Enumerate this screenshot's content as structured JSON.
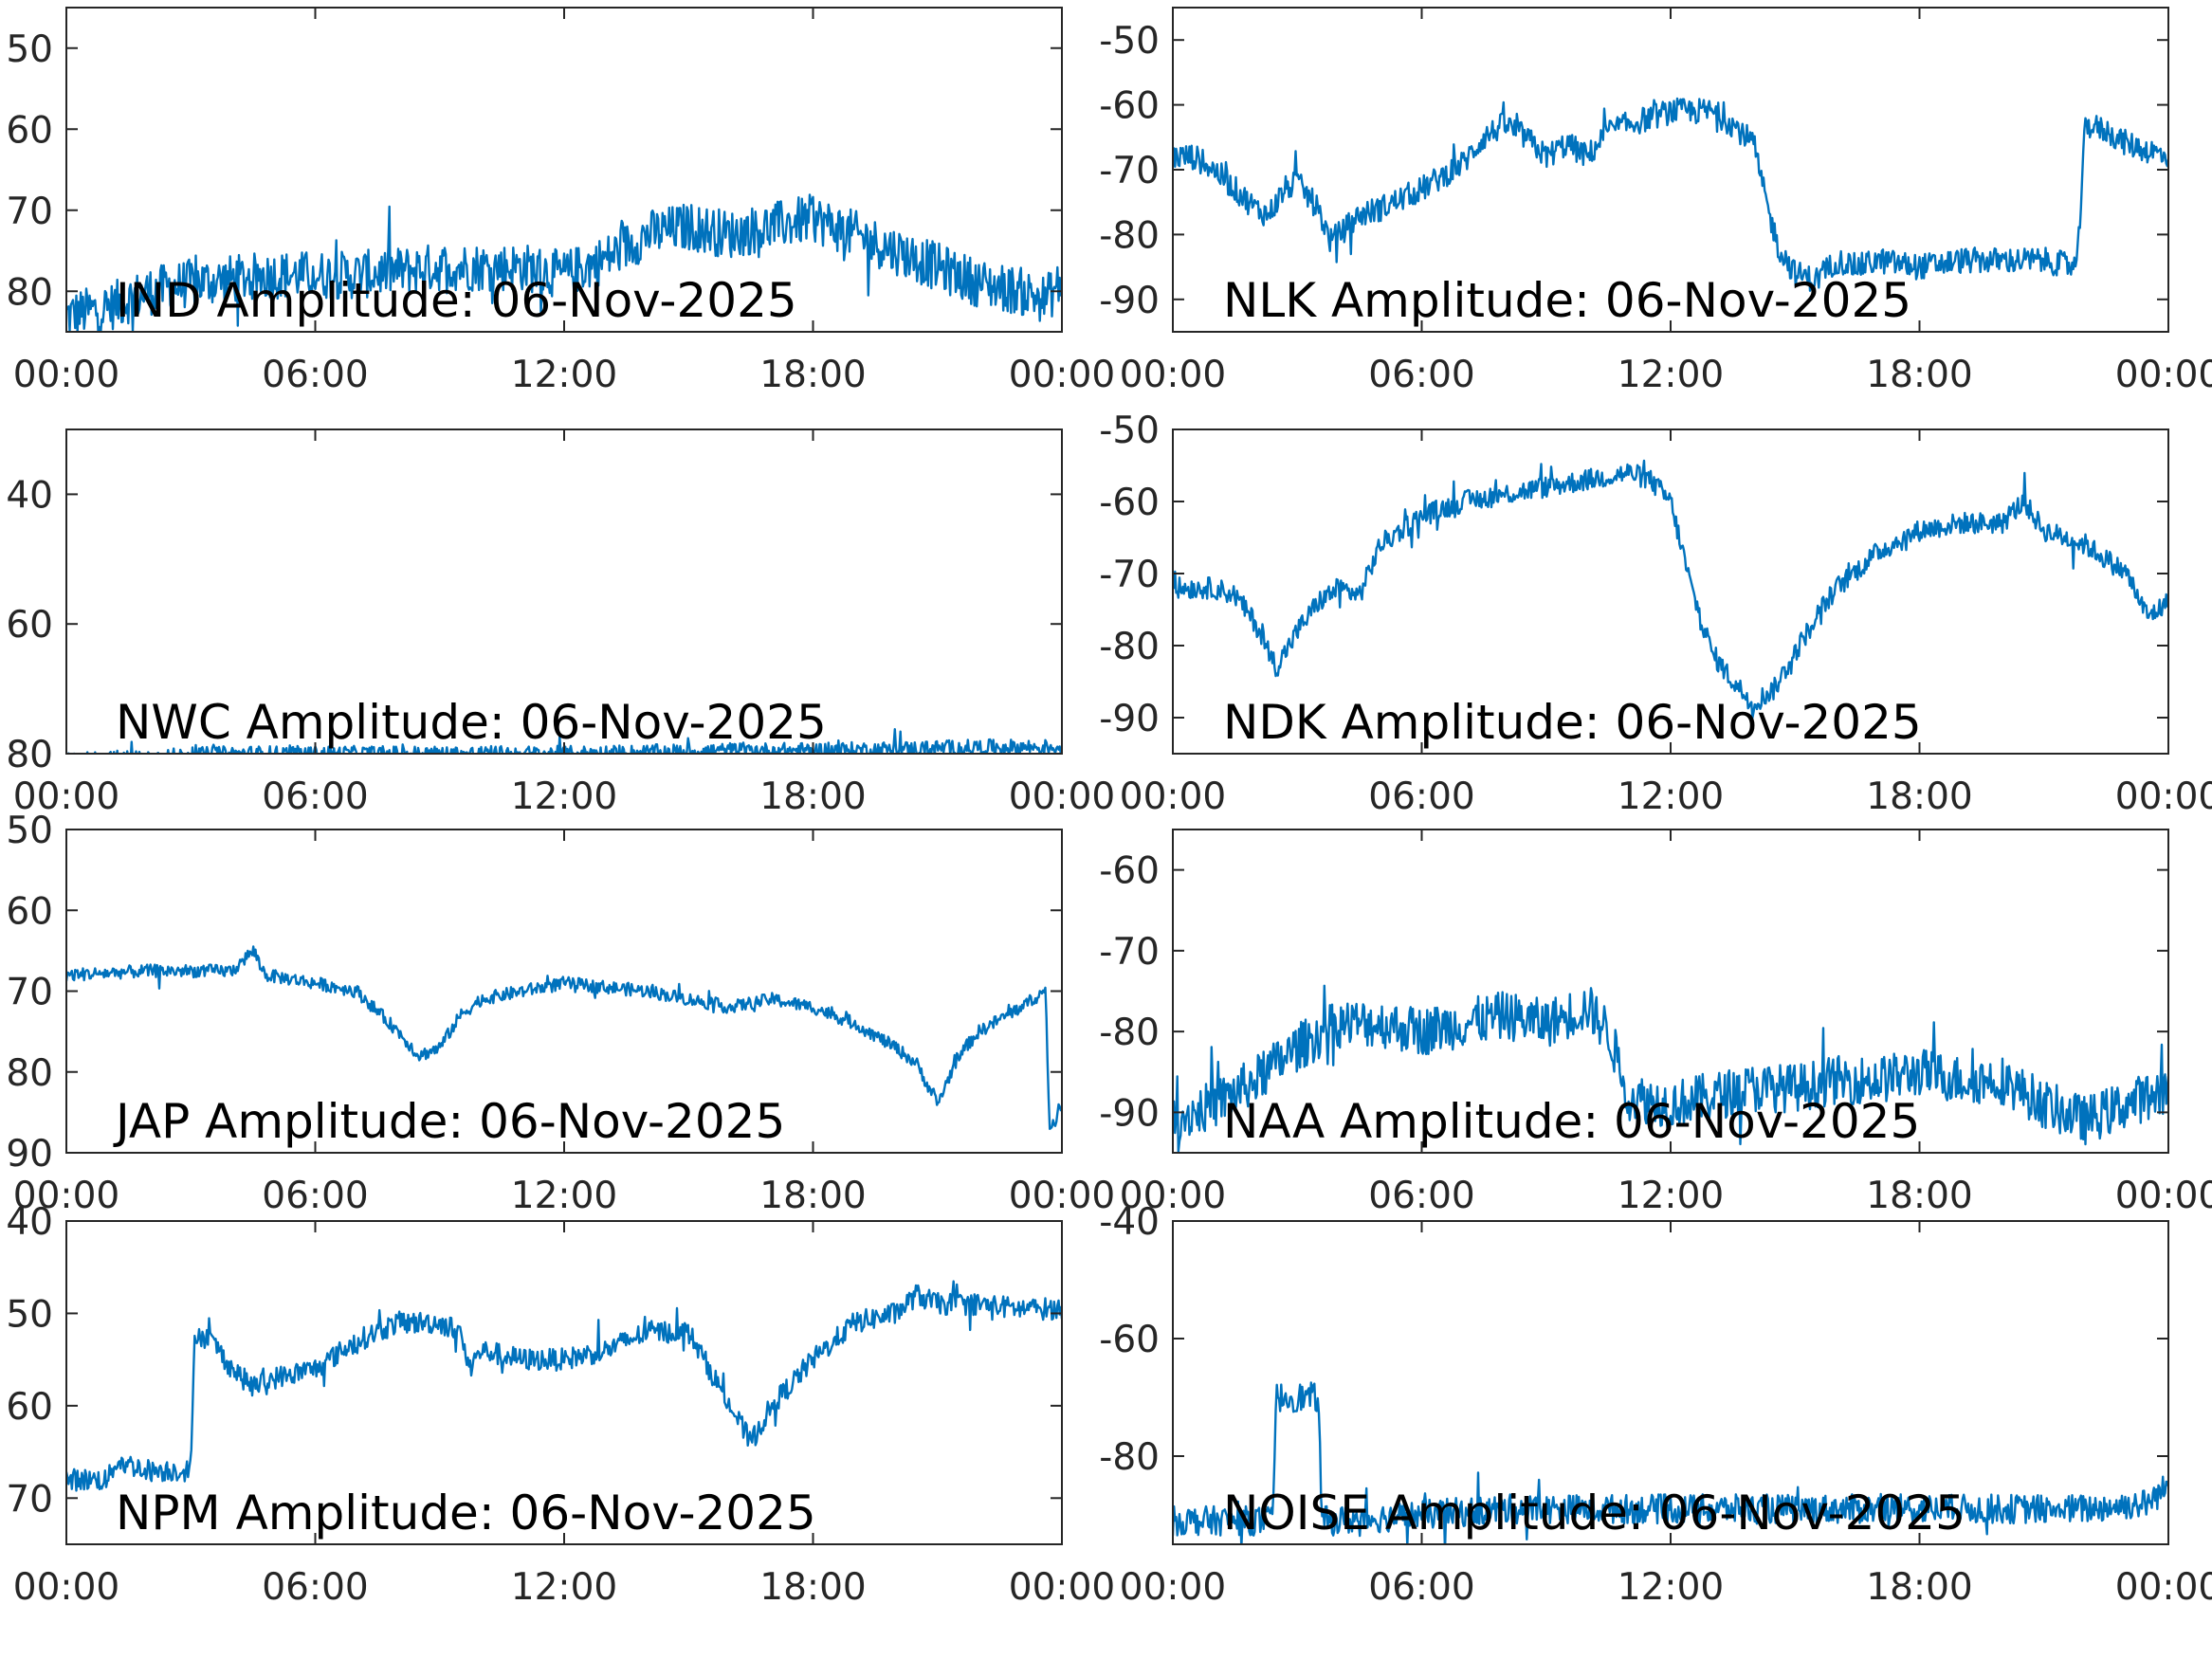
{
  "colors": {
    "series": "#0072bd",
    "axes": "#262626",
    "text": "#000000",
    "background": "#ffffff"
  },
  "chart_data": [
    {
      "type": "line",
      "title": "IND Amplitude: 06-Nov-2025",
      "xlabel": "",
      "ylabel": "",
      "xlim": [
        0,
        24
      ],
      "ylim": [
        -85,
        -45
      ],
      "x_ticks": [
        0,
        6,
        12,
        18,
        24
      ],
      "x_tick_labels": [
        "00:00",
        "06:00",
        "12:00",
        "18:00",
        "00:00"
      ],
      "y_ticks": [
        -50,
        -60,
        -70,
        -80
      ],
      "y_tick_labels": [
        "50",
        "60",
        "70",
        "80"
      ],
      "grid": false,
      "series": [
        {
          "noise": 3,
          "x": [
            0,
            1,
            2,
            3,
            4,
            5,
            6,
            7,
            8,
            9,
            10,
            11,
            12,
            13,
            14,
            15,
            16,
            17,
            18,
            19,
            20,
            21,
            22,
            23,
            23.6,
            24
          ],
          "y": [
            -83,
            -82,
            -80,
            -79,
            -78.5,
            -78,
            -78,
            -78,
            -77.5,
            -77,
            -77,
            -77,
            -78,
            -76,
            -73,
            -72,
            -73,
            -72,
            -71,
            -73,
            -75,
            -77,
            -79,
            -80,
            -81,
            -79
          ]
        }
      ]
    },
    {
      "type": "line",
      "title": "NLK Amplitude: 06-Nov-2025",
      "xlabel": "",
      "ylabel": "",
      "xlim": [
        0,
        24
      ],
      "ylim": [
        -95,
        -45
      ],
      "x_ticks": [
        0,
        6,
        12,
        18,
        24
      ],
      "x_tick_labels": [
        "00:00",
        "06:00",
        "12:00",
        "18:00",
        "00:00"
      ],
      "y_ticks": [
        -50,
        -60,
        -70,
        -80,
        -90
      ],
      "y_tick_labels": [
        "-50",
        "-60",
        "-70",
        "-80",
        "-90"
      ],
      "grid": false,
      "series": [
        {
          "noise": 2,
          "x": [
            0,
            0.5,
            1,
            1.5,
            2,
            2.3,
            2.7,
            3,
            3.5,
            3.8,
            4,
            4.5,
            5,
            6,
            7,
            7.5,
            8,
            8.5,
            9,
            9.5,
            10,
            10.5,
            11,
            12,
            13,
            13.5,
            14,
            14.3,
            14.6,
            15,
            15.5,
            16,
            16.5,
            17,
            18,
            19,
            20,
            21,
            21.8,
            22,
            22.5,
            23,
            23.5,
            24
          ],
          "y": [
            -68,
            -68,
            -70,
            -73,
            -76,
            -77,
            -73,
            -72,
            -76,
            -81,
            -80,
            -77,
            -76,
            -73,
            -69,
            -65,
            -63,
            -65,
            -68,
            -66,
            -68,
            -64,
            -63,
            -61,
            -61,
            -63,
            -66,
            -75,
            -82,
            -86,
            -87,
            -84,
            -85,
            -84,
            -85,
            -84,
            -84,
            -84,
            -85,
            -63,
            -64,
            -66,
            -67,
            -68
          ]
        }
      ]
    },
    {
      "type": "line",
      "title": "NWC Amplitude: 06-Nov-2025",
      "xlabel": "",
      "ylabel": "",
      "xlim": [
        0,
        24
      ],
      "ylim": [
        -80,
        -30
      ],
      "x_ticks": [
        0,
        6,
        12,
        18,
        24
      ],
      "x_tick_labels": [
        "00:00",
        "06:00",
        "12:00",
        "18:00",
        "00:00"
      ],
      "y_ticks": [
        -40,
        -60,
        -80
      ],
      "y_tick_labels": [
        "40",
        "60",
        "80"
      ],
      "grid": false,
      "series": [
        {
          "noise": 1.2,
          "x": [
            0,
            2,
            4,
            6,
            8,
            10,
            12,
            14,
            16,
            18,
            20,
            22,
            24
          ],
          "y": [
            -81,
            -80.5,
            -80,
            -80,
            -80,
            -80,
            -80,
            -79.8,
            -79.5,
            -79.5,
            -79.3,
            -79,
            -79
          ]
        }
      ]
    },
    {
      "type": "line",
      "title": "NDK Amplitude: 06-Nov-2025",
      "xlabel": "",
      "ylabel": "",
      "xlim": [
        0,
        24
      ],
      "ylim": [
        -95,
        -50
      ],
      "x_ticks": [
        0,
        6,
        12,
        18,
        24
      ],
      "x_tick_labels": [
        "00:00",
        "06:00",
        "12:00",
        "18:00",
        "00:00"
      ],
      "y_ticks": [
        -50,
        -60,
        -70,
        -80,
        -90
      ],
      "y_tick_labels": [
        "-50",
        "-60",
        "-70",
        "-80",
        "-90"
      ],
      "grid": false,
      "series": [
        {
          "noise": 1.5,
          "x": [
            0,
            1,
            1.5,
            2,
            2.5,
            3,
            3.5,
            4,
            4.5,
            5,
            5.5,
            6,
            7,
            8,
            9,
            10,
            11,
            11.5,
            12,
            12.5,
            13,
            13.5,
            14,
            14.5,
            15,
            15.5,
            16,
            17,
            18,
            19,
            20,
            20.5,
            21,
            22,
            23,
            23.5,
            24
          ],
          "y": [
            -72,
            -72,
            -73,
            -77,
            -83,
            -78,
            -74,
            -72,
            -73,
            -66,
            -64,
            -62,
            -60,
            -59,
            -58,
            -57,
            -56,
            -57,
            -60,
            -72,
            -81,
            -85,
            -88,
            -86,
            -81,
            -76,
            -72,
            -67,
            -64,
            -63,
            -63,
            -60,
            -64,
            -66,
            -70,
            -76,
            -74
          ]
        }
      ]
    },
    {
      "type": "line",
      "title": "JAP Amplitude: 06-Nov-2025",
      "xlabel": "",
      "ylabel": "",
      "xlim": [
        0,
        24
      ],
      "ylim": [
        -90,
        -50
      ],
      "x_ticks": [
        0,
        6,
        12,
        18,
        24
      ],
      "x_tick_labels": [
        "00:00",
        "06:00",
        "12:00",
        "18:00",
        "00:00"
      ],
      "y_ticks": [
        -50,
        -60,
        -70,
        -80,
        -90
      ],
      "y_tick_labels": [
        "50",
        "60",
        "70",
        "80",
        "90"
      ],
      "grid": false,
      "series": [
        {
          "noise": 0.8,
          "x": [
            0,
            2,
            4,
            4.5,
            4.8,
            6,
            7,
            8,
            8.5,
            9,
            9.5,
            10,
            11,
            12,
            13,
            14,
            15,
            16,
            17,
            18,
            19,
            20,
            20.5,
            21,
            21.5,
            22,
            23,
            23.6,
            23.7,
            24
          ],
          "y": [
            -68,
            -67.5,
            -67.5,
            -65,
            -68,
            -69,
            -70,
            -75,
            -78,
            -77,
            -73,
            -71,
            -70,
            -69,
            -69.5,
            -70,
            -71,
            -72,
            -71,
            -72,
            -74,
            -77,
            -79,
            -84,
            -78,
            -75,
            -72,
            -70,
            -87,
            -84
          ]
        }
      ]
    },
    {
      "type": "line",
      "title": "NAA Amplitude: 06-Nov-2025",
      "xlabel": "",
      "ylabel": "",
      "xlim": [
        0,
        24
      ],
      "ylim": [
        -95,
        -55
      ],
      "x_ticks": [
        0,
        6,
        12,
        18,
        24
      ],
      "x_tick_labels": [
        "00:00",
        "06:00",
        "12:00",
        "18:00",
        "00:00"
      ],
      "y_ticks": [
        -60,
        -70,
        -80,
        -90
      ],
      "y_tick_labels": [
        "-60",
        "-70",
        "-80",
        "-90"
      ],
      "grid": false,
      "series": [
        {
          "noise": 3,
          "x": [
            0,
            1,
            2,
            3,
            4,
            5,
            6,
            7,
            8,
            9,
            10,
            10.5,
            11,
            12,
            13,
            14,
            15,
            16,
            17,
            18,
            19,
            20,
            21,
            22,
            23,
            24
          ],
          "y": [
            -91,
            -89,
            -86,
            -82,
            -79,
            -79,
            -80,
            -79,
            -78,
            -79,
            -77,
            -80,
            -88,
            -89,
            -88,
            -87,
            -87,
            -86,
            -86,
            -85,
            -86,
            -86,
            -89,
            -91,
            -89,
            -87
          ]
        }
      ]
    },
    {
      "type": "line",
      "title": "NPM Amplitude: 06-Nov-2025",
      "xlabel": "",
      "ylabel": "",
      "xlim": [
        0,
        24
      ],
      "ylim": [
        -75,
        -40
      ],
      "x_ticks": [
        0,
        6,
        12,
        18,
        24
      ],
      "x_tick_labels": [
        "00:00",
        "06:00",
        "12:00",
        "18:00",
        "00:00"
      ],
      "y_ticks": [
        -40,
        -50,
        -60,
        -70
      ],
      "y_tick_labels": [
        "40",
        "50",
        "60",
        "70"
      ],
      "grid": false,
      "series": [
        {
          "noise": 1.2,
          "x": [
            0,
            1,
            1.2,
            2,
            3,
            3.1,
            3.5,
            4,
            4.5,
            5,
            6,
            7,
            8,
            9,
            9.5,
            9.7,
            10,
            11,
            12,
            13,
            14,
            15,
            16,
            16.5,
            17,
            18,
            19,
            20,
            20.5,
            21,
            22,
            23,
            24
          ],
          "y": [
            -68,
            -68,
            -66,
            -67,
            -67,
            -52,
            -53,
            -56,
            -58,
            -57,
            -56,
            -53,
            -51,
            -51,
            -52,
            -56,
            -54,
            -55,
            -55,
            -54,
            -52,
            -52,
            -60,
            -64,
            -60,
            -55,
            -51,
            -50,
            -48,
            -49,
            -49,
            -49.5,
            -49.5
          ]
        }
      ]
    },
    {
      "type": "line",
      "title": "NOISE Amplitude: 06-Nov-2025",
      "xlabel": "",
      "ylabel": "",
      "xlim": [
        0,
        24
      ],
      "ylim": [
        -95,
        -40
      ],
      "x_ticks": [
        0,
        6,
        12,
        18,
        24
      ],
      "x_tick_labels": [
        "00:00",
        "06:00",
        "12:00",
        "18:00",
        "00:00"
      ],
      "y_ticks": [
        -40,
        -60,
        -80
      ],
      "y_tick_labels": [
        "-40",
        "-60",
        "-80"
      ],
      "grid": false,
      "series": [
        {
          "noise": 2.5,
          "x": [
            0,
            2,
            2.4,
            2.5,
            3.5,
            3.6,
            4,
            6,
            8,
            10,
            12,
            14,
            16,
            18,
            20,
            22,
            23.5,
            24
          ],
          "y": [
            -91,
            -91,
            -91,
            -70,
            -70,
            -91,
            -91,
            -90,
            -89,
            -89,
            -89,
            -89,
            -89,
            -89,
            -89,
            -89,
            -88,
            -85
          ]
        }
      ]
    }
  ]
}
